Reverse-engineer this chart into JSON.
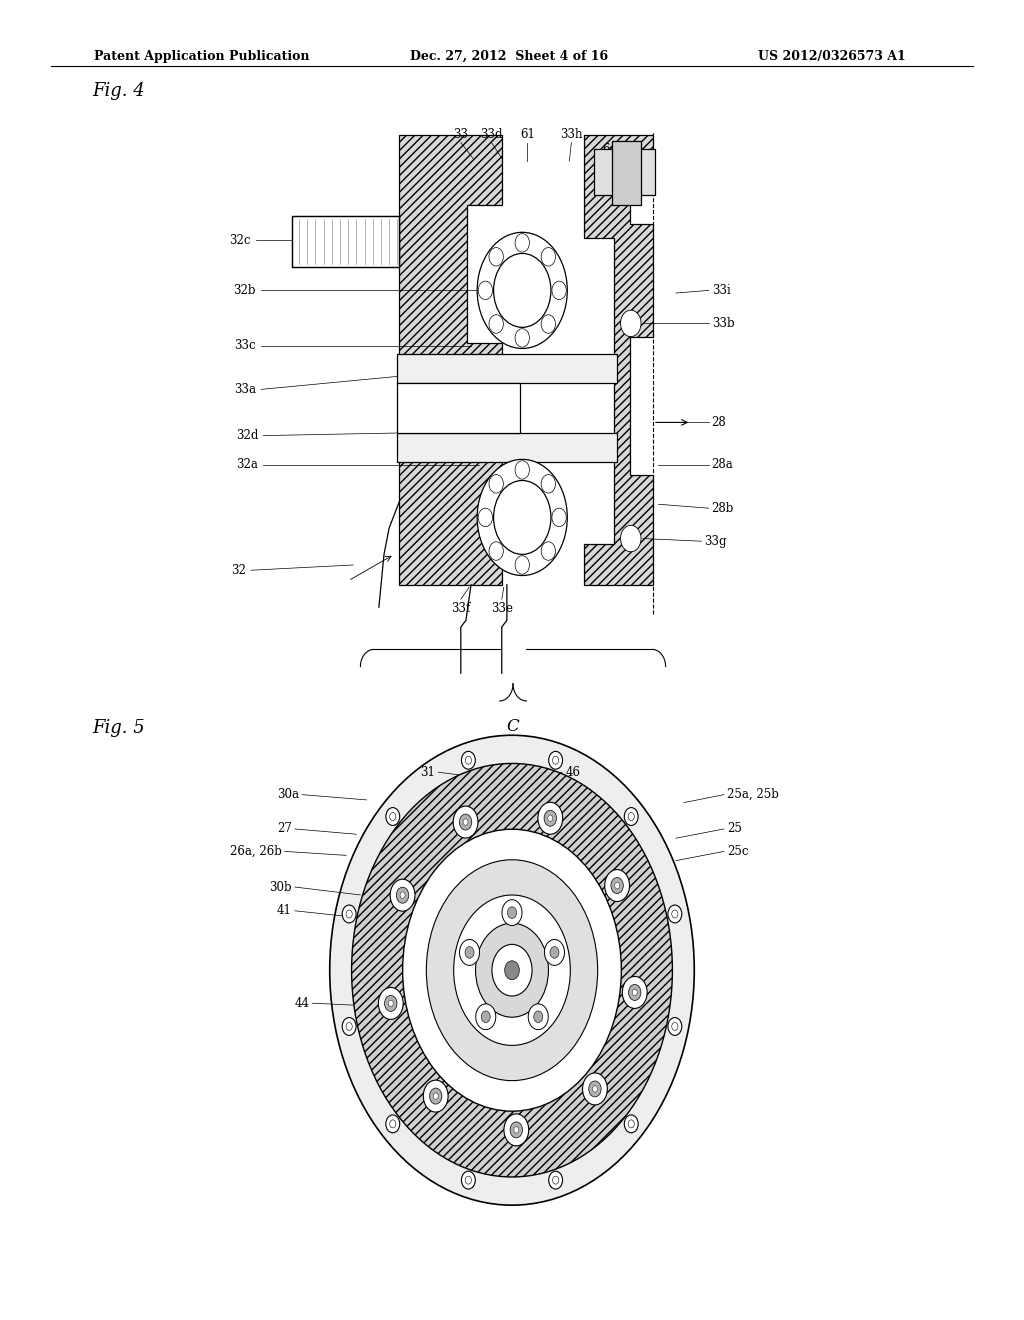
{
  "background_color": "#ffffff",
  "header_text": "Patent Application Publication",
  "header_date": "Dec. 27, 2012  Sheet 4 of 16",
  "header_patent": "US 2012/0326573 A1",
  "fig4_label": "Fig. 4",
  "fig5_label": "Fig. 5",
  "label_C": "C"
}
